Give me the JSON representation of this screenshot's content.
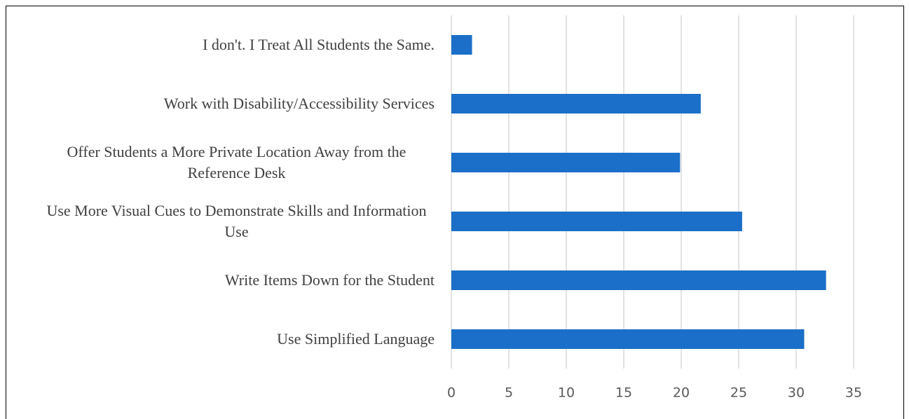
{
  "chart_data": {
    "type": "bar",
    "orientation": "horizontal",
    "categories": [
      "I don't. I Treat All Students the Same.",
      "Work with Disability/Accessibility Services",
      "Offer Students a More Private Location Away from the Reference Desk",
      "Use More Visual Cues to Demonstrate Skills and Information Use",
      "Write Items Down for the Student",
      "Use Simplified Language"
    ],
    "values": [
      1.8,
      21.7,
      19.9,
      25.3,
      32.6,
      30.7
    ],
    "color": "#1b6fc8",
    "xlim": [
      0,
      35
    ],
    "xticks": [
      0,
      5,
      10,
      15,
      20,
      25,
      30,
      35
    ],
    "grid": true
  }
}
